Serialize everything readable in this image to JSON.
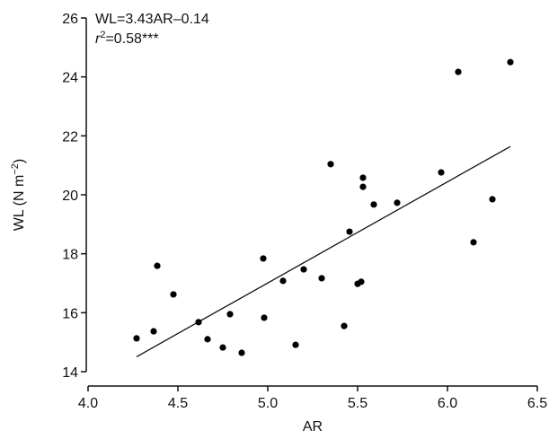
{
  "chart_data": {
    "type": "scatter",
    "x": [
      4.27,
      4.365,
      4.385,
      4.475,
      4.615,
      4.665,
      4.75,
      4.79,
      4.855,
      4.975,
      4.98,
      5.085,
      5.155,
      5.2,
      5.3,
      5.35,
      5.425,
      5.455,
      5.5,
      5.52,
      5.53,
      5.53,
      5.59,
      5.72,
      5.965,
      6.06,
      6.145,
      6.25,
      6.35
    ],
    "values": [
      15.13,
      15.37,
      17.59,
      16.62,
      15.68,
      15.1,
      14.82,
      15.95,
      14.64,
      17.84,
      15.83,
      17.08,
      14.91,
      17.47,
      17.17,
      21.04,
      15.55,
      18.75,
      16.98,
      17.05,
      20.27,
      20.58,
      19.67,
      19.73,
      20.76,
      24.17,
      18.39,
      19.85,
      24.5
    ],
    "color": "#000000",
    "fit": {
      "slope": 3.43,
      "intercept": -0.14
    },
    "annotations": [
      "WL=3.43AR–0.14",
      [
        "r",
        "2",
        "=0.58***"
      ]
    ],
    "xlabel": "AR",
    "ylabel": [
      "WL (N m",
      "−2",
      ")"
    ],
    "xlim": [
      4.0,
      6.5
    ],
    "xticks": [
      {
        "value": 4.0,
        "label": "4.0"
      },
      4.5,
      {
        "value": 5.0,
        "label": "5.0"
      },
      5.5,
      {
        "value": 6.0,
        "label": "6.0"
      },
      6.5
    ],
    "ylim": [
      14,
      26
    ],
    "yticks": [
      14,
      16,
      18,
      20,
      22,
      24,
      26
    ],
    "grid": false
  }
}
